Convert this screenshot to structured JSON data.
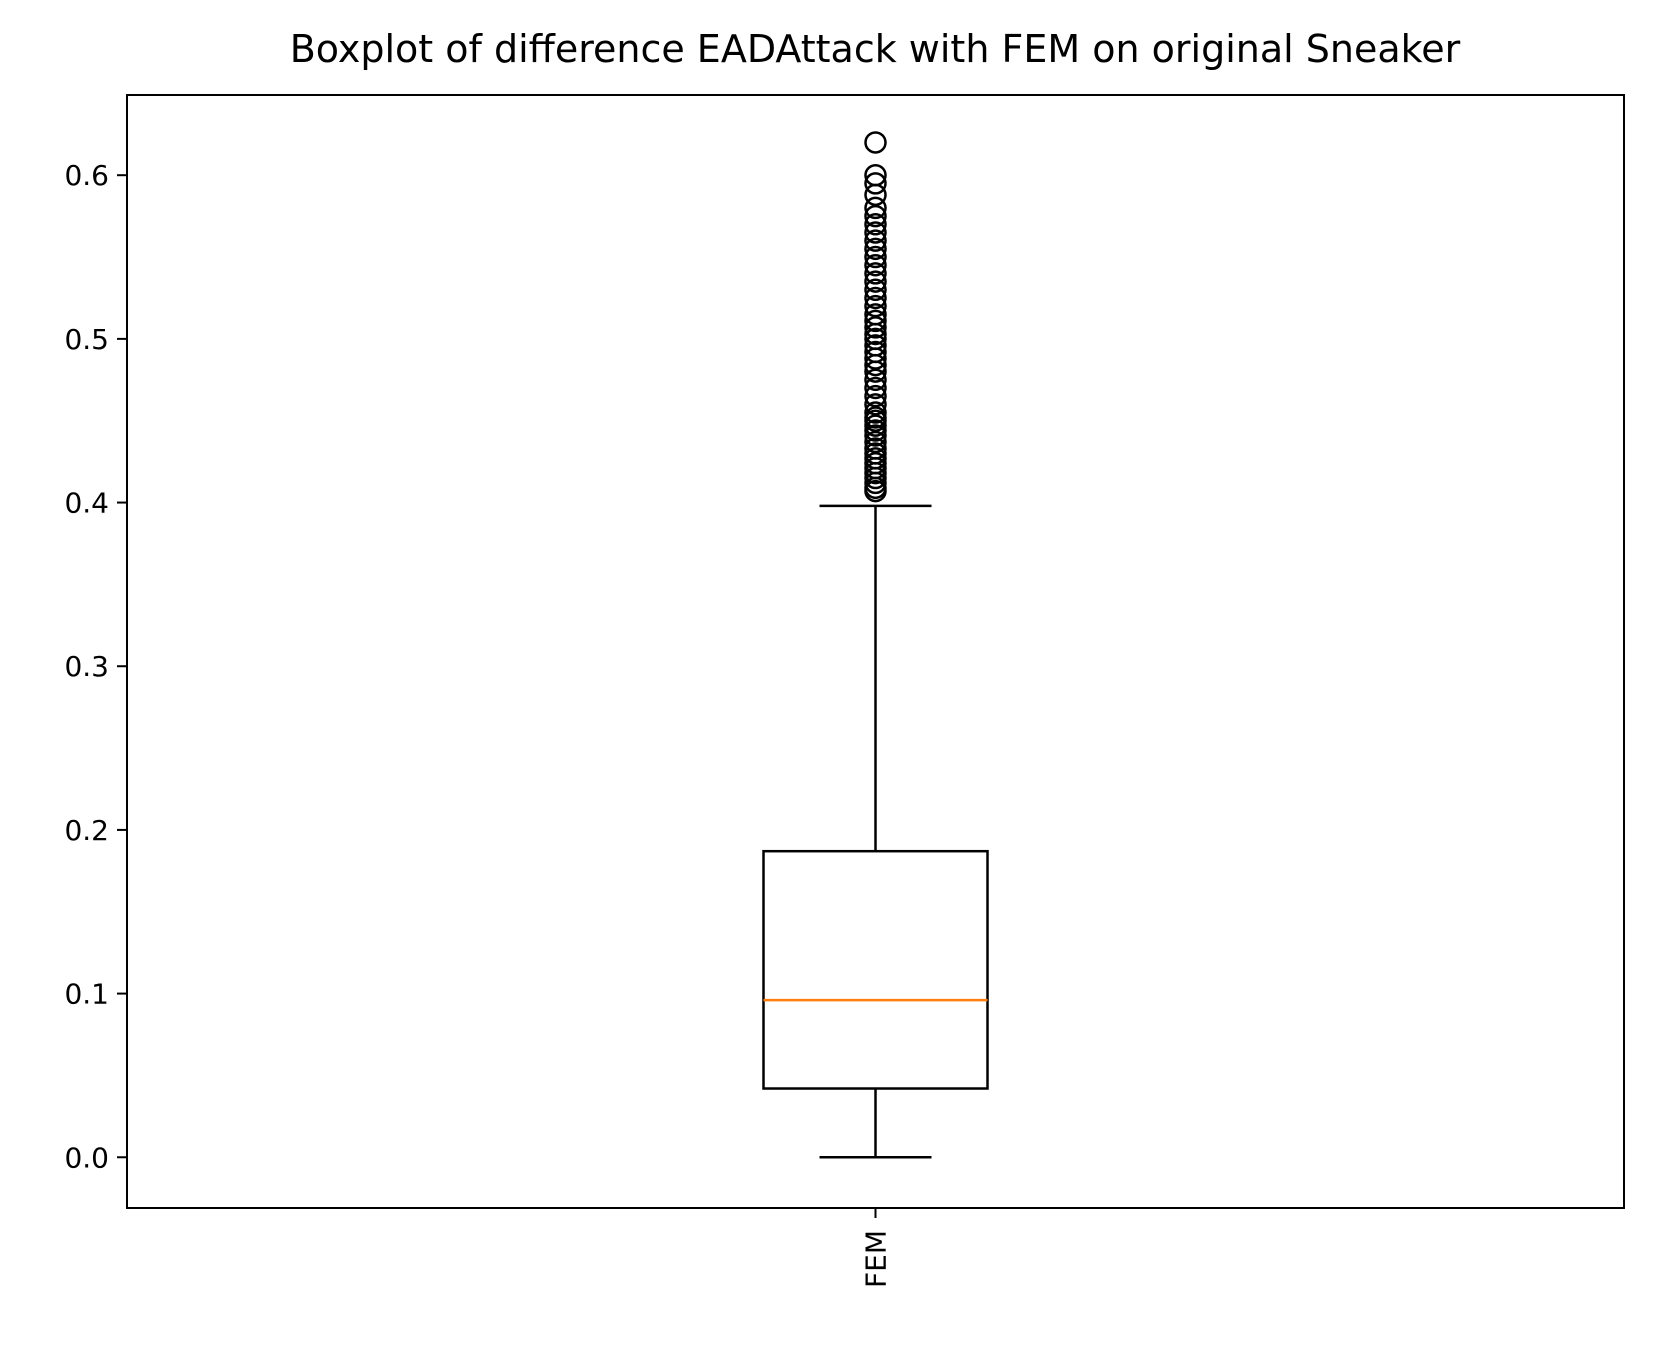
{
  "chart_data": {
    "type": "boxplot",
    "title": "Boxplot of difference EADAttack with FEM on original Sneaker",
    "xlabel": "",
    "ylabel": "",
    "categories": [
      "FEM"
    ],
    "ylim": [
      -0.031,
      0.649
    ],
    "yticks": [
      0.0,
      0.1,
      0.2,
      0.3,
      0.4,
      0.5,
      0.6
    ],
    "ytick_labels": [
      "0.0",
      "0.1",
      "0.2",
      "0.3",
      "0.4",
      "0.5",
      "0.6"
    ],
    "grid": false,
    "series": [
      {
        "whisker_low": 0.0,
        "q1": 0.042,
        "median": 0.096,
        "q3": 0.187,
        "whisker_high": 0.398,
        "outliers": [
          0.407,
          0.409,
          0.412,
          0.415,
          0.418,
          0.421,
          0.424,
          0.427,
          0.43,
          0.433,
          0.437,
          0.441,
          0.444,
          0.447,
          0.45,
          0.452,
          0.455,
          0.46,
          0.465,
          0.47,
          0.475,
          0.48,
          0.484,
          0.488,
          0.492,
          0.496,
          0.5,
          0.503,
          0.507,
          0.511,
          0.515,
          0.52,
          0.525,
          0.53,
          0.535,
          0.54,
          0.545,
          0.55,
          0.555,
          0.56,
          0.565,
          0.57,
          0.575,
          0.58,
          0.588,
          0.595,
          0.6,
          0.62
        ]
      }
    ],
    "colors": {
      "box": "#000000",
      "median": "#ff7f0e",
      "outlier_edge": "#000000"
    }
  }
}
